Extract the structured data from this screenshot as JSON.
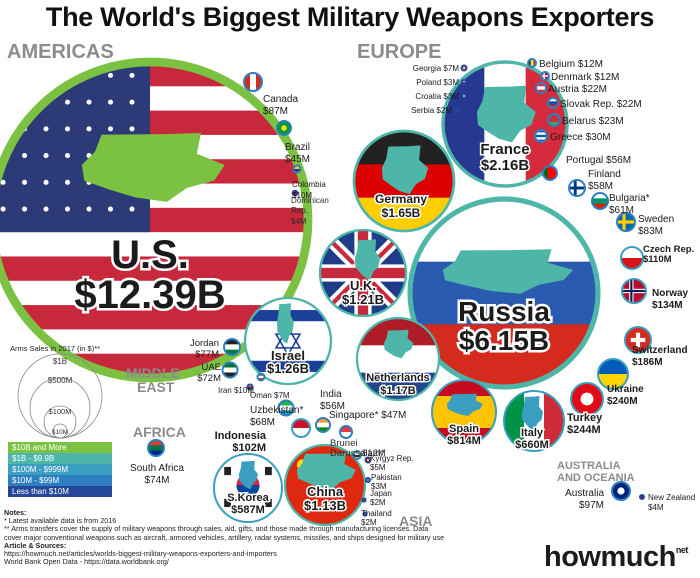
{
  "title": "The World's Biggest Military Weapons Exporters",
  "regions": {
    "americas": "AMERICAS",
    "europe": "EUROPE",
    "middle_east_1": "MIDDLE",
    "middle_east_2": "EAST",
    "africa": "AFRICA",
    "asia": "ASIA",
    "australia_1": "AUSTRALIA",
    "australia_2": "AND OCEANIA"
  },
  "legend": {
    "title": "Arms Sales in 2017 (in $)**",
    "circle_labels": [
      "$1B",
      "$500M",
      "$100M",
      "$10M"
    ],
    "tiers": [
      {
        "label": "$10B and More",
        "color": "#7cc242"
      },
      {
        "label": "$1B - $9.9B",
        "color": "#4db6a8"
      },
      {
        "label": "$100M - $999M",
        "color": "#3a9ec1"
      },
      {
        "label": "$10M - $99M",
        "color": "#2d7fc0"
      },
      {
        "label": "Less than $10M",
        "color": "#25479a"
      }
    ]
  },
  "chart_data": {
    "type": "bubble",
    "title": "The World's Biggest Military Weapons Exporters",
    "unit": "USD (arms sales in 2017)",
    "countries": [
      {
        "name": "U.S.",
        "region": "AMERICAS",
        "label": "$12.39B",
        "value": 12390000000
      },
      {
        "name": "Canada",
        "region": "AMERICAS",
        "label": "$87M",
        "value": 87000000
      },
      {
        "name": "Brazil",
        "region": "AMERICAS",
        "label": "$45M",
        "value": 45000000
      },
      {
        "name": "Colombia",
        "region": "AMERICAS",
        "label": "$10M",
        "value": 10000000
      },
      {
        "name": "Dominican Rep.",
        "region": "AMERICAS",
        "label": "$4M",
        "value": 4000000
      },
      {
        "name": "Russia",
        "region": "EUROPE",
        "label": "$6.15B",
        "value": 6150000000
      },
      {
        "name": "France",
        "region": "EUROPE",
        "label": "$2.16B",
        "value": 2160000000
      },
      {
        "name": "Germany",
        "region": "EUROPE",
        "label": "$1.65B",
        "value": 1650000000
      },
      {
        "name": "U.K.",
        "region": "EUROPE",
        "label": "$1.21B",
        "value": 1210000000
      },
      {
        "name": "Netherlands",
        "region": "EUROPE",
        "label": "$1.17B",
        "value": 1170000000
      },
      {
        "name": "Spain",
        "region": "EUROPE",
        "label": "$814M",
        "value": 814000000
      },
      {
        "name": "Italy",
        "region": "EUROPE",
        "label": "$660M",
        "value": 660000000
      },
      {
        "name": "Turkey",
        "region": "EUROPE",
        "label": "$244M",
        "value": 244000000
      },
      {
        "name": "Ukraine",
        "region": "EUROPE",
        "label": "$240M",
        "value": 240000000
      },
      {
        "name": "Switzerland",
        "region": "EUROPE",
        "label": "$186M",
        "value": 186000000
      },
      {
        "name": "Norway",
        "region": "EUROPE",
        "label": "$134M",
        "value": 134000000
      },
      {
        "name": "Czech Rep.",
        "region": "EUROPE",
        "label": "$110M",
        "value": 110000000
      },
      {
        "name": "Sweden",
        "region": "EUROPE",
        "label": "$83M",
        "value": 83000000
      },
      {
        "name": "Bulgaria*",
        "region": "EUROPE",
        "label": "$61M",
        "value": 61000000
      },
      {
        "name": "Finland",
        "region": "EUROPE",
        "label": "$58M",
        "value": 58000000
      },
      {
        "name": "Portugal",
        "region": "EUROPE",
        "label": "$56M",
        "value": 56000000
      },
      {
        "name": "Greece",
        "region": "EUROPE",
        "label": "$30M",
        "value": 30000000
      },
      {
        "name": "Belarus",
        "region": "EUROPE",
        "label": "$23M",
        "value": 23000000
      },
      {
        "name": "Slovak Rep.",
        "region": "EUROPE",
        "label": "$22M",
        "value": 22000000
      },
      {
        "name": "Austria",
        "region": "EUROPE",
        "label": "$22M",
        "value": 22000000
      },
      {
        "name": "Denmark",
        "region": "EUROPE",
        "label": "$12M",
        "value": 12000000
      },
      {
        "name": "Belgium",
        "region": "EUROPE",
        "label": "$12M",
        "value": 12000000
      },
      {
        "name": "Georgia",
        "region": "EUROPE",
        "label": "$7M",
        "value": 7000000
      },
      {
        "name": "Poland",
        "region": "EUROPE",
        "label": "$3M",
        "value": 3000000
      },
      {
        "name": "Croatia",
        "region": "EUROPE",
        "label": "$3M",
        "value": 3000000
      },
      {
        "name": "Serbia",
        "region": "EUROPE",
        "label": "$2M",
        "value": 2000000
      },
      {
        "name": "Israel",
        "region": "MIDDLE EAST",
        "label": "$1.26B",
        "value": 1260000000
      },
      {
        "name": "Jordan",
        "region": "MIDDLE EAST",
        "label": "$77M",
        "value": 77000000
      },
      {
        "name": "UAE",
        "region": "MIDDLE EAST",
        "label": "$72M",
        "value": 72000000
      },
      {
        "name": "Iran",
        "region": "MIDDLE EAST",
        "label": "$10M",
        "value": 10000000
      },
      {
        "name": "Oman",
        "region": "MIDDLE EAST",
        "label": "$7M",
        "value": 7000000
      },
      {
        "name": "South Africa",
        "region": "AFRICA",
        "label": "$74M",
        "value": 74000000
      },
      {
        "name": "China",
        "region": "ASIA",
        "label": "$1.13B",
        "value": 1130000000
      },
      {
        "name": "S.Korea",
        "region": "ASIA",
        "label": "$587M",
        "value": 587000000
      },
      {
        "name": "Indonesia",
        "region": "ASIA",
        "label": "$102M",
        "value": 102000000
      },
      {
        "name": "Uzbekistan*",
        "region": "ASIA",
        "label": "$68M",
        "value": 68000000
      },
      {
        "name": "India",
        "region": "ASIA",
        "label": "$56M",
        "value": 56000000
      },
      {
        "name": "Singapore*",
        "region": "ASIA",
        "label": "$47M",
        "value": 47000000
      },
      {
        "name": "Brunei Darussalam*",
        "region": "ASIA",
        "label": "$12M",
        "value": 12000000
      },
      {
        "name": "Kyrgyz Rep.",
        "region": "ASIA",
        "label": "$5M",
        "value": 5000000
      },
      {
        "name": "Pakistan",
        "region": "ASIA",
        "label": "$3M",
        "value": 3000000
      },
      {
        "name": "Japan",
        "region": "ASIA",
        "label": "$2M",
        "value": 2000000
      },
      {
        "name": "Thailand",
        "region": "ASIA",
        "label": "$2M",
        "value": 2000000
      },
      {
        "name": "Australia",
        "region": "AUSTRALIA AND OCEANIA",
        "label": "$97M",
        "value": 97000000
      },
      {
        "name": "New Zealand",
        "region": "AUSTRALIA AND OCEANIA",
        "label": "$4M",
        "value": 4000000
      }
    ]
  },
  "notes": {
    "heading": "Notes:",
    "lines": [
      "* Latest available data is from 2016",
      "** Arms transfers cover the supply of military weapons through sales, aid, gifts, and those made through manufacturing licenses. Data",
      "cover major conventional weapons such as aircraft, armored vehicles, artillery, radar systems, missiles, and ships designed for military use"
    ],
    "sources_heading": "Article & Sources:",
    "sources": [
      "https://howmuch.net/articles/worlds-biggest-military-weapons-exporters-and-importers",
      "World Bank Open Data - https://data.worldbank.org/"
    ]
  },
  "brand": {
    "name": "howmuch",
    "suffix": "net"
  }
}
